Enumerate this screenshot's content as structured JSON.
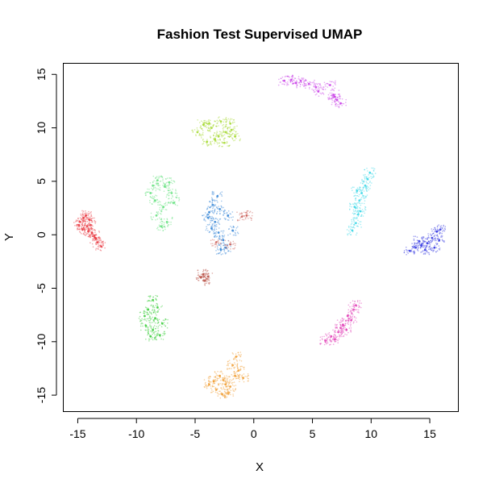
{
  "chart_data": {
    "type": "scatter",
    "title": "Fashion Test Supervised UMAP",
    "xlabel": "X",
    "ylabel": "Y",
    "xlim": [
      -16.2,
      17.4
    ],
    "ylim": [
      -16.5,
      16.0
    ],
    "xticks": [
      -15,
      -10,
      -5,
      0,
      5,
      10,
      15
    ],
    "yticks": [
      -15,
      -10,
      -5,
      0,
      5,
      10,
      15
    ],
    "xtick_labels": [
      "-15",
      "-10",
      "-5",
      "0",
      "5",
      "10",
      "15"
    ],
    "ytick_labels": [
      "-15",
      "-10",
      "-5",
      "0",
      "5",
      "10",
      "15"
    ],
    "grid": false,
    "legend": "none",
    "clusters": [
      {
        "color": "#e8313a",
        "points": [
          [
            -14.8,
            1.2
          ],
          [
            -14.5,
            1.6
          ],
          [
            -14.2,
            0.8
          ],
          [
            -14.0,
            1.4
          ],
          [
            -14.6,
            0.5
          ],
          [
            -13.8,
            0.2
          ],
          [
            -13.5,
            -0.3
          ],
          [
            -13.3,
            -0.7
          ],
          [
            -13.0,
            -1.1
          ],
          [
            -14.9,
            0.9
          ],
          [
            -14.3,
            1.8
          ],
          [
            -13.9,
            0.9
          ],
          [
            -14.1,
            0.3
          ],
          [
            -13.6,
            -0.1
          ]
        ]
      },
      {
        "color": "#b54a3e",
        "points": [
          [
            -4.5,
            -4.0
          ],
          [
            -4.2,
            -4.3
          ],
          [
            -3.9,
            -3.9
          ],
          [
            -4.3,
            -3.7
          ]
        ]
      },
      {
        "color": "#f09a2a",
        "points": [
          [
            -3.8,
            -14.0
          ],
          [
            -3.2,
            -14.5
          ],
          [
            -2.6,
            -13.6
          ],
          [
            -2.2,
            -14.8
          ],
          [
            -1.6,
            -13.2
          ],
          [
            -1.8,
            -12.2
          ],
          [
            -1.5,
            -11.4
          ],
          [
            -0.9,
            -13.4
          ],
          [
            -2.9,
            -13.2
          ],
          [
            -2.4,
            -14.0
          ],
          [
            -3.4,
            -13.7
          ],
          [
            -2.0,
            -14.2
          ],
          [
            -1.3,
            -12.7
          ],
          [
            -2.7,
            -14.9
          ]
        ]
      },
      {
        "color": "#a2d829",
        "points": [
          [
            -4.8,
            9.6
          ],
          [
            -4.3,
            10.3
          ],
          [
            -3.6,
            10.0
          ],
          [
            -3.0,
            9.2
          ],
          [
            -2.4,
            9.6
          ],
          [
            -2.0,
            10.4
          ],
          [
            -2.8,
            10.6
          ],
          [
            -3.3,
            8.9
          ],
          [
            -1.6,
            9.2
          ],
          [
            -4.0,
            8.7
          ],
          [
            -2.5,
            8.6
          ],
          [
            -3.8,
            10.4
          ],
          [
            -1.9,
            9.8
          ]
        ]
      },
      {
        "color": "#33cc33",
        "points": [
          [
            -8.6,
            -6.1
          ],
          [
            -9.0,
            -7.0
          ],
          [
            -8.4,
            -7.8
          ],
          [
            -9.2,
            -8.5
          ],
          [
            -8.6,
            -8.9
          ],
          [
            -8.0,
            -9.4
          ],
          [
            -7.8,
            -8.3
          ],
          [
            -8.8,
            -9.5
          ],
          [
            -9.3,
            -7.6
          ],
          [
            -8.2,
            -6.8
          ]
        ]
      },
      {
        "color": "#5fe07a",
        "points": [
          [
            -8.6,
            4.6
          ],
          [
            -8.2,
            5.1
          ],
          [
            -7.6,
            4.5
          ],
          [
            -7.0,
            3.9
          ],
          [
            -8.4,
            3.2
          ],
          [
            -7.7,
            2.6
          ],
          [
            -8.3,
            1.8
          ],
          [
            -7.4,
            1.2
          ],
          [
            -7.9,
            0.8
          ],
          [
            -6.8,
            3.0
          ],
          [
            -8.8,
            3.9
          ],
          [
            -7.2,
            4.9
          ]
        ]
      },
      {
        "color": "#2a7fd4",
        "points": [
          [
            -3.8,
            2.1
          ],
          [
            -3.5,
            2.8
          ],
          [
            -3.1,
            3.6
          ],
          [
            -3.3,
            1.2
          ],
          [
            -3.0,
            0.2
          ],
          [
            -2.6,
            -0.5
          ],
          [
            -2.4,
            -1.2
          ],
          [
            -2.8,
            -1.4
          ],
          [
            -3.6,
            0.6
          ],
          [
            -2.2,
            1.8
          ],
          [
            -1.8,
            0.4
          ],
          [
            -3.9,
            1.6
          ],
          [
            -2.9,
            2.4
          ]
        ]
      },
      {
        "color": "#c95b54",
        "points": [
          [
            -1.0,
            1.7
          ],
          [
            -0.6,
            1.8
          ],
          [
            -3.2,
            -0.7
          ],
          [
            -2.0,
            -0.9
          ]
        ]
      },
      {
        "color": "#35d6e6",
        "points": [
          [
            8.4,
            0.4
          ],
          [
            8.7,
            1.1
          ],
          [
            8.9,
            1.9
          ],
          [
            8.6,
            2.6
          ],
          [
            9.0,
            3.2
          ],
          [
            9.2,
            3.9
          ],
          [
            9.5,
            4.6
          ],
          [
            9.7,
            5.2
          ],
          [
            9.9,
            5.8
          ],
          [
            9.1,
            2.2
          ],
          [
            8.8,
            4.1
          ]
        ]
      },
      {
        "color": "#2a2ee0",
        "points": [
          [
            13.3,
            -1.5
          ],
          [
            13.8,
            -1.2
          ],
          [
            14.3,
            -1.0
          ],
          [
            14.8,
            -0.8
          ],
          [
            15.2,
            -0.3
          ],
          [
            15.6,
            0.3
          ],
          [
            15.8,
            -0.5
          ],
          [
            15.4,
            -1.2
          ],
          [
            14.6,
            -1.4
          ],
          [
            15.9,
            0.5
          ],
          [
            14.1,
            -0.6
          ]
        ]
      },
      {
        "color": "#e036b4",
        "points": [
          [
            6.1,
            -9.9
          ],
          [
            6.6,
            -9.5
          ],
          [
            7.2,
            -9.1
          ],
          [
            7.6,
            -8.4
          ],
          [
            8.0,
            -7.6
          ],
          [
            8.5,
            -7.0
          ],
          [
            8.7,
            -6.6
          ],
          [
            6.9,
            -9.8
          ],
          [
            7.9,
            -8.9
          ],
          [
            8.3,
            -8.0
          ],
          [
            7.4,
            -8.7
          ]
        ]
      },
      {
        "color": "#c839e6",
        "points": [
          [
            2.6,
            14.4
          ],
          [
            3.2,
            14.5
          ],
          [
            4.0,
            14.4
          ],
          [
            4.7,
            14.1
          ],
          [
            5.3,
            13.8
          ],
          [
            5.5,
            13.4
          ],
          [
            6.5,
            14.0
          ],
          [
            6.8,
            13.1
          ],
          [
            7.1,
            12.6
          ],
          [
            7.4,
            12.3
          ],
          [
            6.9,
            12.9
          ],
          [
            3.6,
            14.2
          ]
        ]
      }
    ]
  }
}
